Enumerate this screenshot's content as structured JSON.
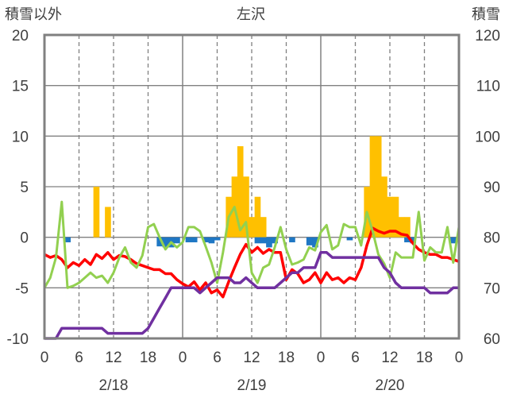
{
  "chart_data": {
    "type": "bar+line",
    "title": "左沢",
    "ylabel_left": "積雪以外",
    "ylabel_right": "積雪",
    "y_left": {
      "min": -10,
      "max": 20,
      "ticks": [
        "-10",
        "-5",
        "0",
        "5",
        "10",
        "15",
        "20"
      ]
    },
    "y_right": {
      "min": 60,
      "max": 120,
      "ticks": [
        "60",
        "70",
        "80",
        "90",
        "100",
        "110",
        "120"
      ]
    },
    "x": {
      "hours_total": 72,
      "tick_labels": [
        "0",
        "6",
        "12",
        "18",
        "0",
        "6",
        "12",
        "18",
        "0",
        "6",
        "12",
        "18",
        "0"
      ]
    },
    "dates": [
      "2/18",
      "2/19",
      "2/20"
    ],
    "colors": {
      "precip": "#FFC000",
      "wind": "#1F77C4",
      "red_line": "#FF0000",
      "green_line": "#92D050",
      "snow_depth": "#7030A0",
      "axes": "#808080",
      "grid": "#808080"
    },
    "series": [
      {
        "kind": "bar",
        "color": "precip",
        "points": [
          [
            9,
            5
          ],
          [
            11,
            3
          ],
          [
            32,
            4
          ],
          [
            33,
            6
          ],
          [
            34,
            9
          ],
          [
            35,
            6
          ],
          [
            36,
            2
          ],
          [
            37,
            4
          ],
          [
            38,
            2
          ],
          [
            56,
            5
          ],
          [
            57,
            10
          ],
          [
            58,
            10
          ],
          [
            59,
            6
          ],
          [
            60,
            4
          ],
          [
            61,
            4
          ],
          [
            62,
            2
          ],
          [
            63,
            2
          ]
        ]
      },
      {
        "kind": "bar",
        "color": "wind",
        "points": [
          [
            4,
            -0.5
          ],
          [
            20,
            -0.9
          ],
          [
            21,
            -1
          ],
          [
            22,
            -1
          ],
          [
            23,
            -0.6
          ],
          [
            25,
            -0.5
          ],
          [
            26,
            -0.5
          ],
          [
            28,
            -0.5
          ],
          [
            29,
            -0.6
          ],
          [
            30,
            -0.3
          ],
          [
            37,
            -0.6
          ],
          [
            38,
            -0.6
          ],
          [
            39,
            -1
          ],
          [
            40,
            -0.6
          ],
          [
            43,
            -0.5
          ],
          [
            46,
            -0.8
          ],
          [
            47,
            -1
          ],
          [
            53,
            -0.3
          ],
          [
            63,
            -0.5
          ],
          [
            64,
            -0.6
          ],
          [
            71,
            -0.6
          ]
        ]
      },
      {
        "kind": "line",
        "axis": "left",
        "color": "red_line",
        "x": [
          0,
          1,
          2,
          3,
          4,
          5,
          6,
          7,
          8,
          9,
          10,
          11,
          12,
          13,
          14,
          15,
          16,
          17,
          18,
          19,
          20,
          21,
          22,
          23,
          24,
          25,
          26,
          27,
          28,
          29,
          30,
          31,
          32,
          33,
          34,
          35,
          36,
          37,
          38,
          39,
          40,
          41,
          42,
          43,
          44,
          45,
          46,
          47,
          48,
          49,
          50,
          51,
          52,
          53,
          54,
          55,
          56,
          57,
          58,
          59,
          60,
          61,
          62,
          63,
          64,
          65,
          66,
          67,
          68,
          69,
          70,
          71,
          72
        ],
        "y": [
          -1.7,
          -2,
          -1.8,
          -2.2,
          -3,
          -2.5,
          -2.8,
          -2.2,
          -2.7,
          -1.7,
          -2.1,
          -1.5,
          -2.2,
          -1.8,
          -1.9,
          -2.2,
          -2.6,
          -2.8,
          -3,
          -3.2,
          -3.2,
          -3.6,
          -3.6,
          -4.2,
          -4.6,
          -4.9,
          -4.4,
          -5.2,
          -4.5,
          -5.5,
          -5.2,
          -5.9,
          -4.4,
          -3,
          -1.7,
          -0.7,
          -1.5,
          -1,
          -1.6,
          -1.2,
          -1.5,
          -1.5,
          -4.2,
          -3.2,
          -3.6,
          -4.5,
          -4.2,
          -3.5,
          -4.5,
          -3.5,
          -4.2,
          -4,
          -4.5,
          -4,
          -4.2,
          -3,
          -0.8,
          0.9,
          0.6,
          0.4,
          0.6,
          0.6,
          0.3,
          0.2,
          -0.6,
          -1.2,
          -1.5,
          -1.7,
          -1.7,
          -2,
          -2,
          -2.2,
          -2.4
        ]
      },
      {
        "kind": "line",
        "axis": "left",
        "color": "green_line",
        "x": [
          0,
          1,
          2,
          3,
          4,
          5,
          6,
          7,
          8,
          9,
          10,
          11,
          12,
          13,
          14,
          15,
          16,
          17,
          18,
          19,
          20,
          21,
          22,
          23,
          24,
          25,
          26,
          27,
          28,
          29,
          30,
          31,
          32,
          33,
          34,
          35,
          36,
          37,
          38,
          39,
          40,
          41,
          42,
          43,
          44,
          45,
          46,
          47,
          48,
          49,
          50,
          51,
          52,
          53,
          54,
          55,
          56,
          57,
          58,
          59,
          60,
          61,
          62,
          63,
          64,
          65,
          66,
          67,
          68,
          69,
          70,
          71,
          72
        ],
        "y": [
          -5,
          -4,
          -2,
          3.5,
          -5,
          -4.8,
          -4.5,
          -4,
          -3.5,
          -4,
          -3.8,
          -4.5,
          -3.5,
          -2,
          -1,
          -2.5,
          -3,
          -1.8,
          1,
          1.3,
          0,
          -1.2,
          -0.5,
          -1,
          -0.5,
          1,
          1,
          0.6,
          -0.9,
          -2.5,
          -4.5,
          -1.5,
          2,
          3,
          0.7,
          1.5,
          -3.5,
          -4.5,
          -3,
          -2.7,
          -1,
          1,
          -1.2,
          -2.7,
          -2.5,
          -2.2,
          -1,
          -1.3,
          0.5,
          1.2,
          -1.2,
          -0.8,
          1.3,
          1,
          1,
          -0.8,
          2.5,
          0.6,
          -1.7,
          -2.6,
          -4,
          -1.5,
          -2,
          -2,
          -2,
          2.5,
          -2.3,
          -1,
          -1.5,
          -1.5,
          1,
          -2.5,
          1
        ]
      },
      {
        "kind": "line",
        "axis": "right",
        "color": "snow_depth",
        "x": [
          0,
          1,
          2,
          3,
          4,
          5,
          6,
          7,
          8,
          9,
          10,
          11,
          12,
          13,
          14,
          15,
          16,
          17,
          18,
          19,
          20,
          21,
          22,
          23,
          24,
          25,
          26,
          27,
          28,
          29,
          30,
          31,
          32,
          33,
          34,
          35,
          36,
          37,
          38,
          39,
          40,
          41,
          42,
          43,
          44,
          45,
          46,
          47,
          48,
          49,
          50,
          51,
          52,
          53,
          54,
          55,
          56,
          57,
          58,
          59,
          60,
          61,
          62,
          63,
          64,
          65,
          66,
          67,
          68,
          69,
          70,
          71,
          72
        ],
        "y": [
          60,
          60,
          60,
          62,
          62,
          62,
          62,
          62,
          62,
          62,
          62,
          61,
          61,
          61,
          61,
          61,
          61,
          61,
          62,
          64,
          66,
          68,
          70,
          70,
          70,
          70,
          70,
          69,
          70,
          71,
          72,
          72,
          72,
          71,
          71,
          72,
          71,
          70,
          70,
          70,
          70,
          71,
          72,
          73,
          73,
          74,
          74,
          74,
          77,
          77,
          76,
          76,
          76,
          76,
          76,
          76,
          76,
          76,
          76,
          74,
          73,
          71,
          70,
          70,
          70,
          70,
          70,
          69,
          69,
          69,
          69,
          70,
          70
        ]
      }
    ]
  }
}
